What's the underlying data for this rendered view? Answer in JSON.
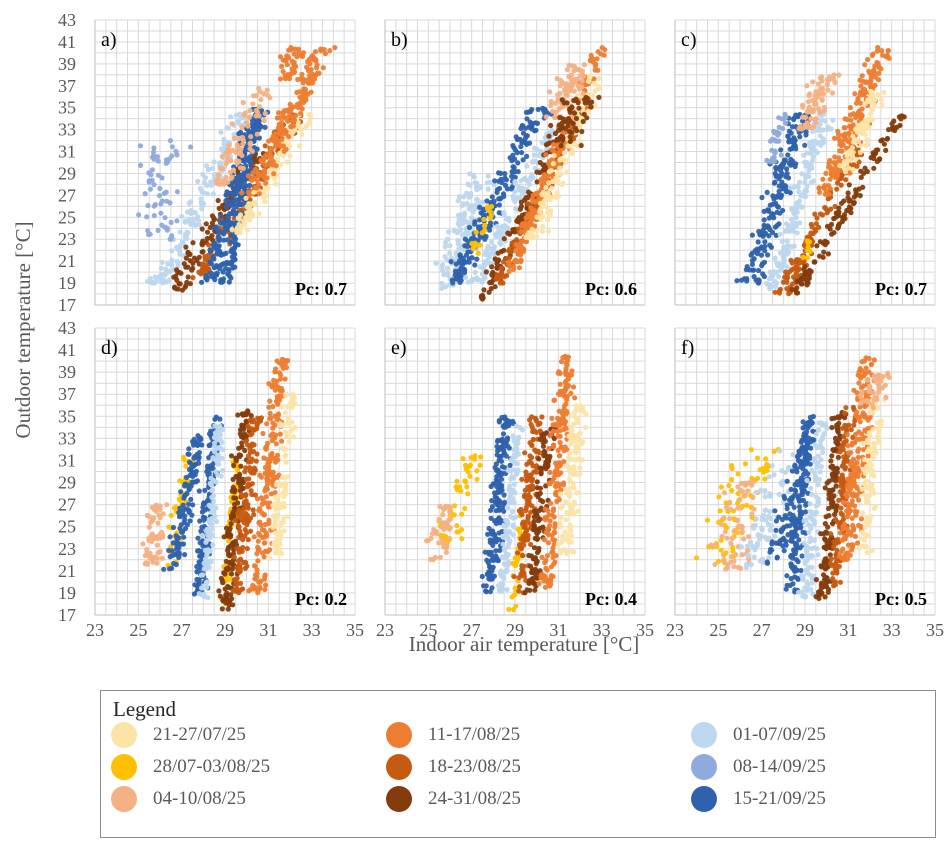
{
  "chart_data": {
    "type": "scatter",
    "xlabel": "Indoor air temperature [°C]",
    "ylabel": "Outdoor temperature [°C]",
    "xlim": [
      23,
      35
    ],
    "ylim": [
      17,
      43
    ],
    "xticks": [
      23,
      25,
      27,
      29,
      31,
      33,
      35
    ],
    "yticks": [
      17,
      19,
      21,
      23,
      25,
      27,
      29,
      31,
      33,
      35,
      37,
      39,
      41,
      43
    ],
    "grid": true,
    "legend_placement": "bottom",
    "legend_title": "Legend",
    "series": [
      {
        "name": "21-27/07/25",
        "color": "#fce4a6"
      },
      {
        "name": "28/07-03/08/25",
        "color": "#ffc000"
      },
      {
        "name": "04-10/08/25",
        "color": "#f4b183"
      },
      {
        "name": "11-17/08/25",
        "color": "#ed7d31"
      },
      {
        "name": "18-23/08/25",
        "color": "#c55a11"
      },
      {
        "name": "24-31/08/25",
        "color": "#843c0c"
      },
      {
        "name": "01-07/09/25",
        "color": "#bdd7ee"
      },
      {
        "name": "08-14/09/25",
        "color": "#8faadc"
      },
      {
        "name": "15-21/09/25",
        "color": "#2e62ad"
      }
    ],
    "panels": [
      {
        "label": "a)",
        "pc": "Pc: 0.7",
        "clusters": [
          {
            "s": 6,
            "x": 26.0,
            "ymin": 19.0,
            "ymax": 34.5,
            "slope": 0.25,
            "w": 0.8,
            "n": 160
          },
          {
            "s": 7,
            "x": 25.8,
            "ymin": 23.0,
            "ymax": 32.0,
            "slope": 0.05,
            "w": 1.4,
            "n": 60
          },
          {
            "s": 5,
            "x": 26.6,
            "ymin": 18.0,
            "ymax": 31.0,
            "slope": 0.3,
            "w": 0.8,
            "n": 110
          },
          {
            "s": 4,
            "x": 27.8,
            "ymin": 19.5,
            "ymax": 34.5,
            "slope": 0.3,
            "w": 0.7,
            "n": 130
          },
          {
            "s": 8,
            "x": 28.2,
            "ymin": 19.0,
            "ymax": 35.0,
            "slope": 0.15,
            "w": 0.7,
            "n": 180
          },
          {
            "s": 8,
            "x": 29.0,
            "ymin": 19.0,
            "ymax": 35.0,
            "slope": 0.1,
            "w": 0.5,
            "n": 150
          },
          {
            "s": 0,
            "x": 29.5,
            "ymin": 23.5,
            "ymax": 34.5,
            "slope": 0.3,
            "w": 0.7,
            "n": 120
          },
          {
            "s": 2,
            "x": 29.0,
            "ymin": 28.0,
            "ymax": 37.0,
            "slope": 0.2,
            "w": 0.9,
            "n": 80
          },
          {
            "s": 3,
            "x": 30.2,
            "ymin": 27.0,
            "ymax": 40.5,
            "slope": 0.25,
            "w": 0.8,
            "n": 170
          },
          {
            "s": 3,
            "x": 31.7,
            "ymin": 37.5,
            "ymax": 40.5,
            "slope": 0.2,
            "w": 0.8,
            "n": 40
          }
        ]
      },
      {
        "label": "b)",
        "pc": "Pc: 0.6",
        "clusters": [
          {
            "s": 6,
            "x": 25.8,
            "ymin": 18.5,
            "ymax": 29.0,
            "slope": 0.15,
            "w": 1.0,
            "n": 130
          },
          {
            "s": 8,
            "x": 26.2,
            "ymin": 19.0,
            "ymax": 35.0,
            "slope": 0.25,
            "w": 0.8,
            "n": 190
          },
          {
            "s": 1,
            "x": 26.8,
            "ymin": 20.5,
            "ymax": 26.0,
            "slope": 0.2,
            "w": 0.5,
            "n": 20
          },
          {
            "s": 6,
            "x": 27.2,
            "ymin": 19.0,
            "ymax": 33.0,
            "slope": 0.25,
            "w": 0.6,
            "n": 130
          },
          {
            "s": 5,
            "x": 27.4,
            "ymin": 17.5,
            "ymax": 33.0,
            "slope": 0.25,
            "w": 0.6,
            "n": 110
          },
          {
            "s": 4,
            "x": 28.2,
            "ymin": 19.0,
            "ymax": 35.0,
            "slope": 0.25,
            "w": 0.5,
            "n": 130
          },
          {
            "s": 3,
            "x": 28.8,
            "ymin": 20.0,
            "ymax": 40.5,
            "slope": 0.2,
            "w": 0.6,
            "n": 190
          },
          {
            "s": 0,
            "x": 29.8,
            "ymin": 23.0,
            "ymax": 38.0,
            "slope": 0.2,
            "w": 0.7,
            "n": 120
          },
          {
            "s": 2,
            "x": 30.8,
            "ymin": 34.0,
            "ymax": 39.0,
            "slope": 0.25,
            "w": 1.0,
            "n": 70
          },
          {
            "s": 5,
            "x": 31.0,
            "ymin": 31.5,
            "ymax": 36.0,
            "slope": 0.25,
            "w": 1.2,
            "n": 60
          }
        ]
      },
      {
        "label": "c)",
        "pc": "Pc: 0.7",
        "clusters": [
          {
            "s": 8,
            "x": 26.5,
            "ymin": 19.0,
            "ymax": 34.5,
            "slope": 0.15,
            "w": 0.8,
            "n": 180
          },
          {
            "s": 6,
            "x": 27.5,
            "ymin": 18.5,
            "ymax": 34.5,
            "slope": 0.15,
            "w": 0.6,
            "n": 160
          },
          {
            "s": 7,
            "x": 27.5,
            "ymin": 30.0,
            "ymax": 34.5,
            "slope": 0.1,
            "w": 0.5,
            "n": 30
          },
          {
            "s": 4,
            "x": 28.0,
            "ymin": 18.0,
            "ymax": 32.0,
            "slope": 0.25,
            "w": 0.6,
            "n": 120
          },
          {
            "s": 5,
            "x": 28.4,
            "ymin": 17.5,
            "ymax": 34.5,
            "slope": 0.3,
            "w": 0.6,
            "n": 120
          },
          {
            "s": 2,
            "x": 29.0,
            "ymin": 33.0,
            "ymax": 38.0,
            "slope": 0.2,
            "w": 1.0,
            "n": 70
          },
          {
            "s": 3,
            "x": 29.9,
            "ymin": 27.0,
            "ymax": 40.5,
            "slope": 0.2,
            "w": 0.8,
            "n": 170
          },
          {
            "s": 0,
            "x": 30.9,
            "ymin": 29.0,
            "ymax": 36.5,
            "slope": 0.2,
            "w": 0.6,
            "n": 70
          },
          {
            "s": 1,
            "x": 29.0,
            "ymin": 21.0,
            "ymax": 23.0,
            "slope": 0.1,
            "w": 0.3,
            "n": 8
          }
        ]
      },
      {
        "label": "d)",
        "pc": "Pc: 0.2",
        "clusters": [
          {
            "s": 2,
            "x": 25.5,
            "ymin": 21.5,
            "ymax": 27.0,
            "slope": 0.1,
            "w": 0.8,
            "n": 60
          },
          {
            "s": 1,
            "x": 26.4,
            "ymin": 21.0,
            "ymax": 31.5,
            "slope": 0.1,
            "w": 0.5,
            "n": 50
          },
          {
            "s": 8,
            "x": 26.6,
            "ymin": 21.0,
            "ymax": 33.5,
            "slope": 0.1,
            "w": 0.6,
            "n": 110
          },
          {
            "s": 8,
            "x": 27.8,
            "ymin": 18.5,
            "ymax": 35.0,
            "slope": 0.05,
            "w": 0.4,
            "n": 150
          },
          {
            "s": 6,
            "x": 28.0,
            "ymin": 18.5,
            "ymax": 34.5,
            "slope": 0.05,
            "w": 0.4,
            "n": 110
          },
          {
            "s": 1,
            "x": 28.9,
            "ymin": 18.0,
            "ymax": 31.0,
            "slope": 0.05,
            "w": 0.3,
            "n": 60
          },
          {
            "s": 5,
            "x": 29.0,
            "ymin": 17.5,
            "ymax": 35.5,
            "slope": 0.05,
            "w": 0.5,
            "n": 150
          },
          {
            "s": 4,
            "x": 29.6,
            "ymin": 19.0,
            "ymax": 35.0,
            "slope": 0.05,
            "w": 0.5,
            "n": 130
          },
          {
            "s": 3,
            "x": 30.5,
            "ymin": 19.0,
            "ymax": 40.5,
            "slope": 0.05,
            "w": 0.6,
            "n": 190
          },
          {
            "s": 0,
            "x": 31.3,
            "ymin": 22.0,
            "ymax": 37.0,
            "slope": 0.05,
            "w": 0.6,
            "n": 110
          }
        ]
      },
      {
        "label": "e)",
        "pc": "Pc: 0.4",
        "clusters": [
          {
            "s": 1,
            "x": 25.8,
            "ymin": 22.5,
            "ymax": 31.5,
            "slope": 0.15,
            "w": 1.0,
            "n": 50
          },
          {
            "s": 2,
            "x": 25.4,
            "ymin": 22.0,
            "ymax": 27.0,
            "slope": 0.1,
            "w": 0.7,
            "n": 40
          },
          {
            "s": 8,
            "x": 27.8,
            "ymin": 19.0,
            "ymax": 35.0,
            "slope": 0.05,
            "w": 0.5,
            "n": 170
          },
          {
            "s": 6,
            "x": 28.4,
            "ymin": 19.0,
            "ymax": 34.5,
            "slope": 0.05,
            "w": 0.4,
            "n": 110
          },
          {
            "s": 1,
            "x": 28.9,
            "ymin": 17.5,
            "ymax": 27.0,
            "slope": 0.05,
            "w": 0.3,
            "n": 30
          },
          {
            "s": 4,
            "x": 29.2,
            "ymin": 19.0,
            "ymax": 35.0,
            "slope": 0.05,
            "w": 0.5,
            "n": 130
          },
          {
            "s": 5,
            "x": 29.8,
            "ymin": 19.0,
            "ymax": 34.0,
            "slope": 0.05,
            "w": 0.5,
            "n": 120
          },
          {
            "s": 3,
            "x": 30.4,
            "ymin": 19.5,
            "ymax": 40.5,
            "slope": 0.05,
            "w": 0.6,
            "n": 190
          },
          {
            "s": 0,
            "x": 31.3,
            "ymin": 22.5,
            "ymax": 36.0,
            "slope": 0.05,
            "w": 0.6,
            "n": 110
          }
        ]
      },
      {
        "label": "f)",
        "pc": "Pc: 0.5",
        "clusters": [
          {
            "s": 1,
            "x": 24.8,
            "ymin": 21.5,
            "ymax": 32.0,
            "slope": 0.2,
            "w": 1.5,
            "n": 70
          },
          {
            "s": 2,
            "x": 25.5,
            "ymin": 21.0,
            "ymax": 30.0,
            "slope": 0.1,
            "w": 1.3,
            "n": 60
          },
          {
            "s": 6,
            "x": 26.5,
            "ymin": 21.0,
            "ymax": 32.0,
            "slope": 0.15,
            "w": 1.2,
            "n": 70
          },
          {
            "s": 8,
            "x": 27.5,
            "ymin": 21.5,
            "ymax": 33.0,
            "slope": 0.15,
            "w": 0.8,
            "n": 90
          },
          {
            "s": 8,
            "x": 28.4,
            "ymin": 19.0,
            "ymax": 35.0,
            "slope": 0.05,
            "w": 0.5,
            "n": 150
          },
          {
            "s": 6,
            "x": 29.0,
            "ymin": 18.5,
            "ymax": 34.5,
            "slope": 0.05,
            "w": 0.5,
            "n": 110
          },
          {
            "s": 5,
            "x": 29.8,
            "ymin": 18.5,
            "ymax": 35.5,
            "slope": 0.05,
            "w": 0.5,
            "n": 140
          },
          {
            "s": 4,
            "x": 30.3,
            "ymin": 19.5,
            "ymax": 36.0,
            "slope": 0.05,
            "w": 0.5,
            "n": 110
          },
          {
            "s": 3,
            "x": 31.0,
            "ymin": 22.0,
            "ymax": 40.5,
            "slope": 0.05,
            "w": 0.7,
            "n": 190
          },
          {
            "s": 0,
            "x": 31.6,
            "ymin": 22.5,
            "ymax": 36.5,
            "slope": 0.05,
            "w": 0.6,
            "n": 90
          },
          {
            "s": 2,
            "x": 31.8,
            "ymin": 35.5,
            "ymax": 39.0,
            "slope": 0.2,
            "w": 0.8,
            "n": 40
          }
        ]
      }
    ]
  }
}
